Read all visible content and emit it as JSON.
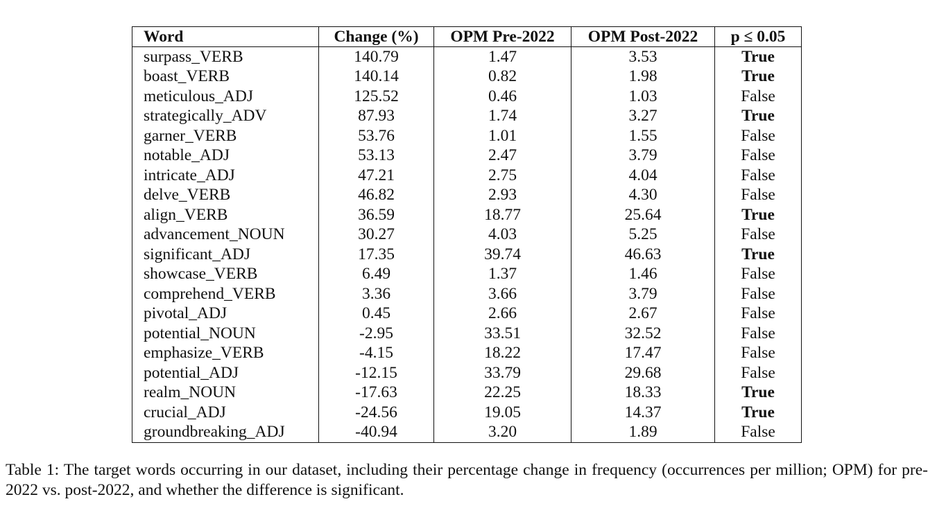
{
  "table": {
    "headers": [
      "Word",
      "Change (%)",
      "OPM Pre-2022",
      "OPM Post-2022",
      "p ≤ 0.05"
    ],
    "rows": [
      {
        "word": "surpass_VERB",
        "change": "140.79",
        "pre": "1.47",
        "post": "3.53",
        "sig": "True"
      },
      {
        "word": "boast_VERB",
        "change": "140.14",
        "pre": "0.82",
        "post": "1.98",
        "sig": "True"
      },
      {
        "word": "meticulous_ADJ",
        "change": "125.52",
        "pre": "0.46",
        "post": "1.03",
        "sig": "False"
      },
      {
        "word": "strategically_ADV",
        "change": "87.93",
        "pre": "1.74",
        "post": "3.27",
        "sig": "True"
      },
      {
        "word": "garner_VERB",
        "change": "53.76",
        "pre": "1.01",
        "post": "1.55",
        "sig": "False"
      },
      {
        "word": "notable_ADJ",
        "change": "53.13",
        "pre": "2.47",
        "post": "3.79",
        "sig": "False"
      },
      {
        "word": "intricate_ADJ",
        "change": "47.21",
        "pre": "2.75",
        "post": "4.04",
        "sig": "False"
      },
      {
        "word": "delve_VERB",
        "change": "46.82",
        "pre": "2.93",
        "post": "4.30",
        "sig": "False"
      },
      {
        "word": "align_VERB",
        "change": "36.59",
        "pre": "18.77",
        "post": "25.64",
        "sig": "True"
      },
      {
        "word": "advancement_NOUN",
        "change": "30.27",
        "pre": "4.03",
        "post": "5.25",
        "sig": "False"
      },
      {
        "word": "significant_ADJ",
        "change": "17.35",
        "pre": "39.74",
        "post": "46.63",
        "sig": "True"
      },
      {
        "word": "showcase_VERB",
        "change": "6.49",
        "pre": "1.37",
        "post": "1.46",
        "sig": "False"
      },
      {
        "word": "comprehend_VERB",
        "change": "3.36",
        "pre": "3.66",
        "post": "3.79",
        "sig": "False"
      },
      {
        "word": "pivotal_ADJ",
        "change": "0.45",
        "pre": "2.66",
        "post": "2.67",
        "sig": "False"
      },
      {
        "word": "potential_NOUN",
        "change": "-2.95",
        "pre": "33.51",
        "post": "32.52",
        "sig": "False"
      },
      {
        "word": "emphasize_VERB",
        "change": "-4.15",
        "pre": "18.22",
        "post": "17.47",
        "sig": "False"
      },
      {
        "word": "potential_ADJ",
        "change": "-12.15",
        "pre": "33.79",
        "post": "29.68",
        "sig": "False"
      },
      {
        "word": "realm_NOUN",
        "change": "-17.63",
        "pre": "22.25",
        "post": "18.33",
        "sig": "True"
      },
      {
        "word": "crucial_ADJ",
        "change": "-24.56",
        "pre": "19.05",
        "post": "14.37",
        "sig": "True"
      },
      {
        "word": "groundbreaking_ADJ",
        "change": "-40.94",
        "pre": "3.20",
        "post": "1.89",
        "sig": "False"
      }
    ]
  },
  "caption": "Table 1: The target words occurring in our dataset, including their percentage change in frequency (occurrences per million; OPM) for pre-2022 vs. post-2022, and whether the difference is significant."
}
